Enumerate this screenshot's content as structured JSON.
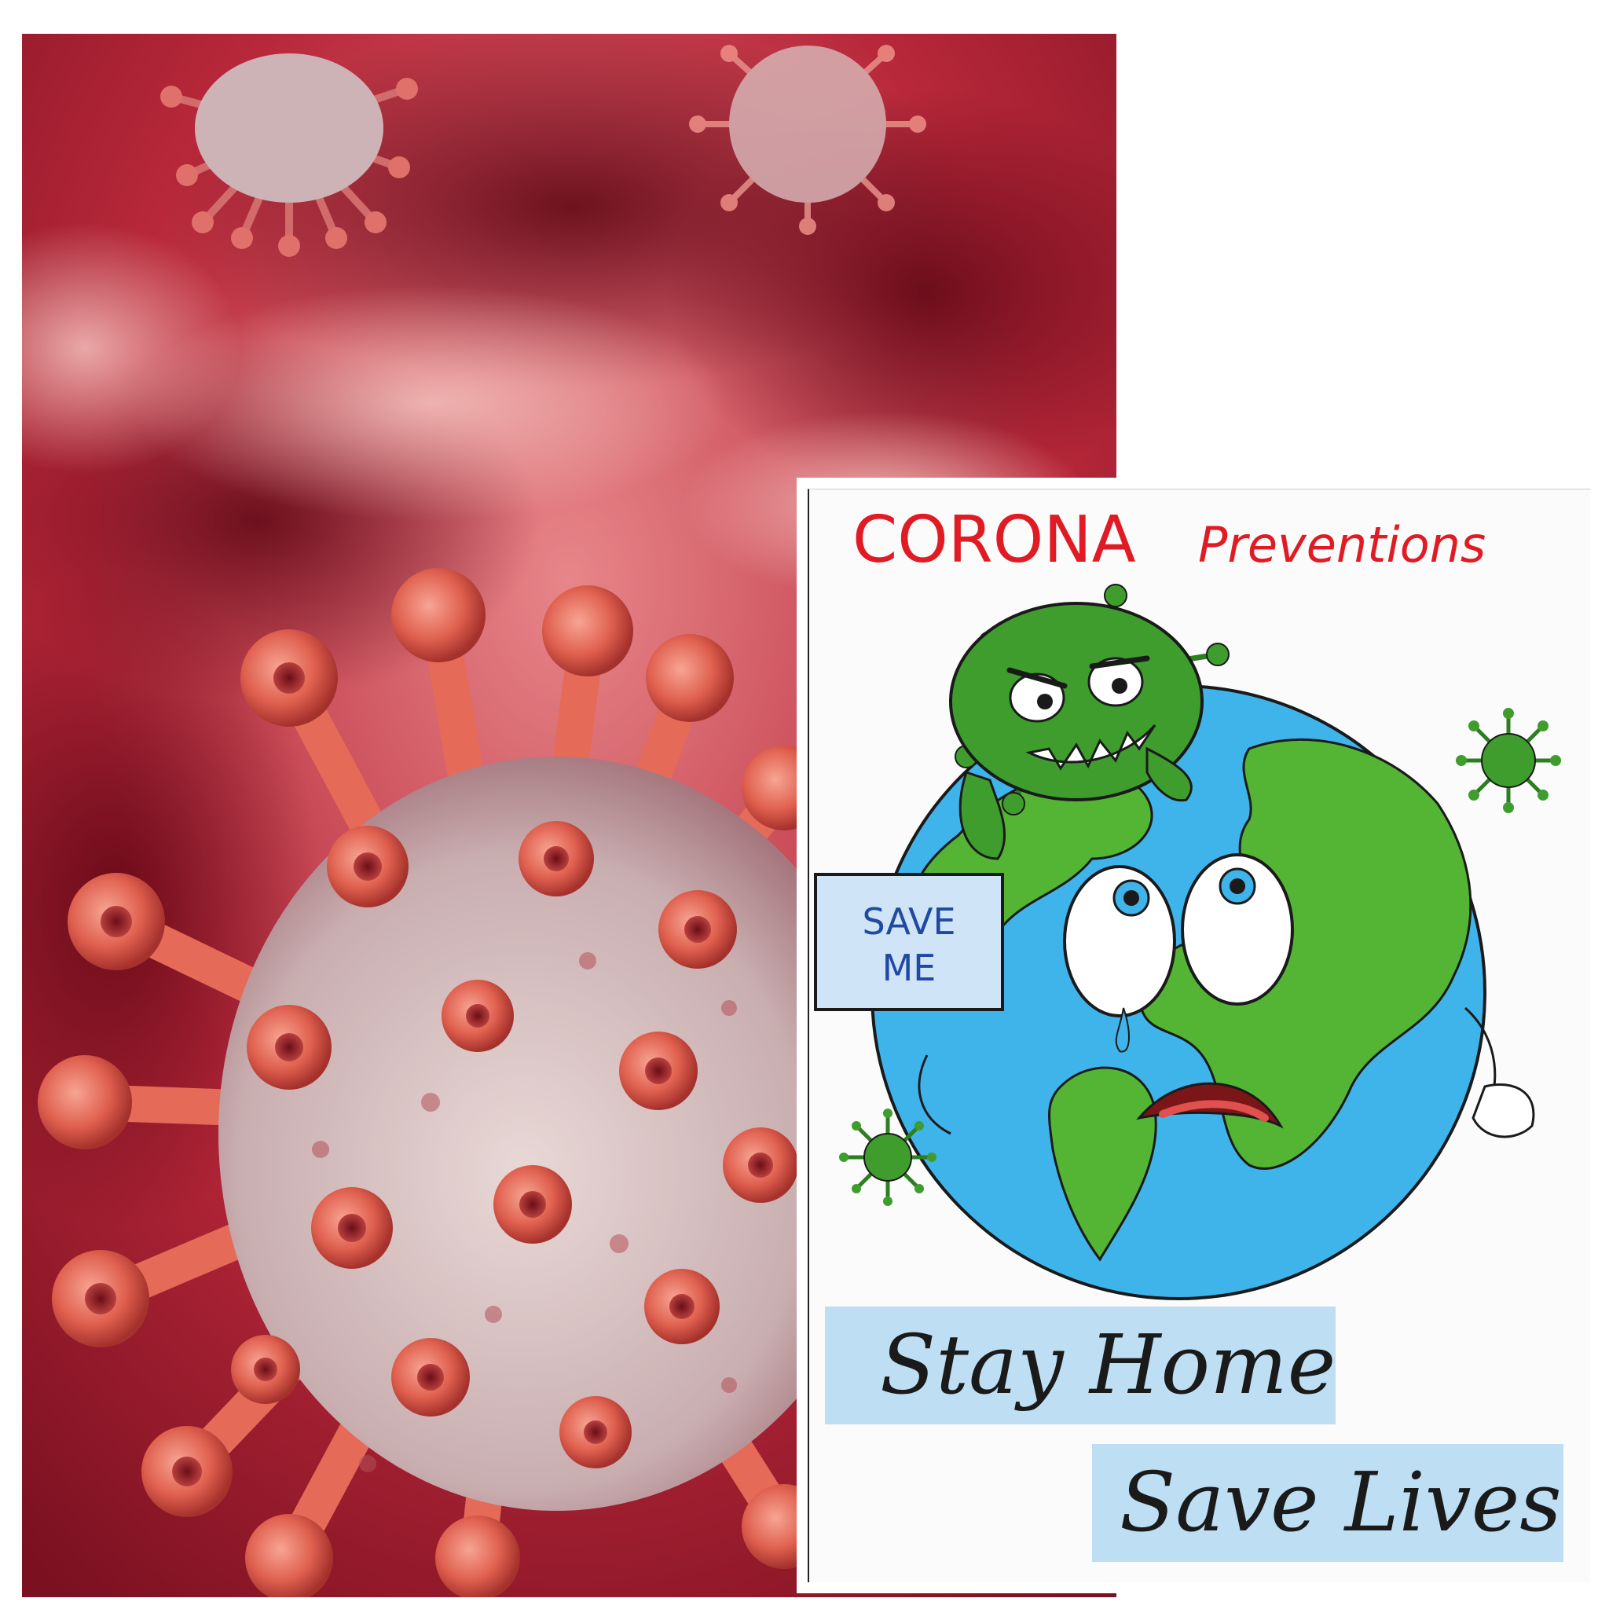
{
  "photo": {
    "subject": "virus-render",
    "colors": {
      "base": "#b8283a",
      "dark": "#6a0b1a",
      "light": "#f2b6b0",
      "spike": "#e5604f",
      "body": "#d9c4c4"
    }
  },
  "poster": {
    "title_word1": "CORONA",
    "title_word2": "Preventions",
    "sign_line1": "SAVE",
    "sign_line2": "ME",
    "slogan_line1": "Stay Home",
    "slogan_line2": "Save Lives",
    "colors": {
      "title": "#e01b24",
      "ocean": "#3fb4ea",
      "land": "#53b533",
      "virus": "#3f9d2e",
      "highlight": "#a9d4f0",
      "sign_text": "#1f4aa0"
    }
  }
}
